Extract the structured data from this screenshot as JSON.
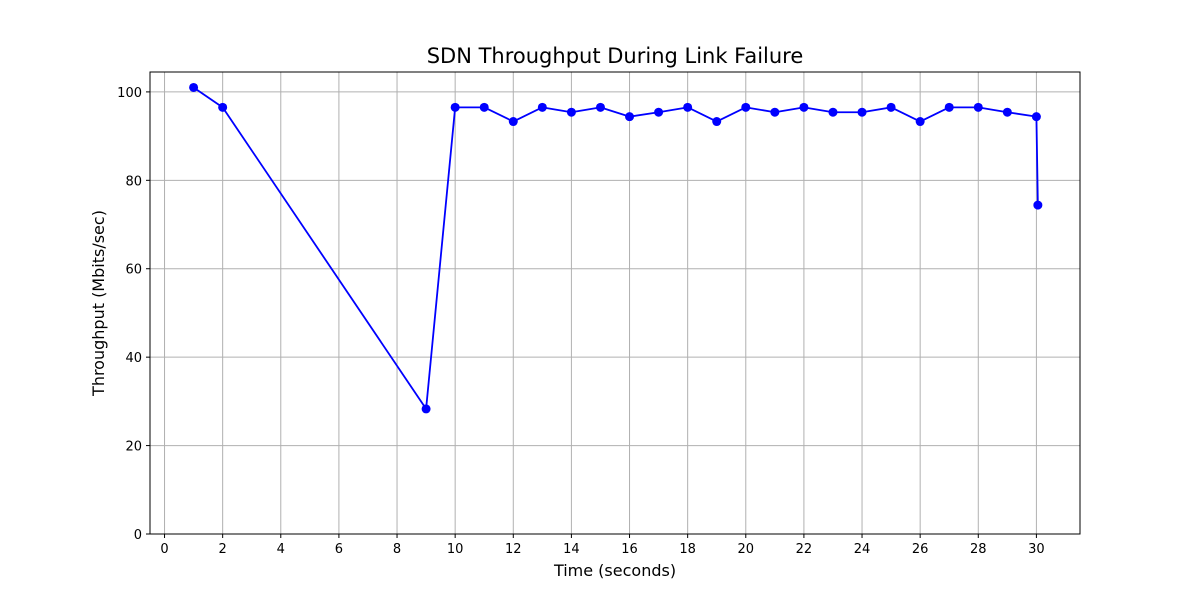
{
  "chart_data": {
    "type": "line",
    "title": "SDN Throughput During Link Failure",
    "xlabel": "Time (seconds)",
    "ylabel": "Throughput (Mbits/sec)",
    "xlim": [
      -0.5,
      31.5
    ],
    "ylim": [
      0,
      104.5
    ],
    "xticks": [
      0,
      2,
      4,
      6,
      8,
      10,
      12,
      14,
      16,
      18,
      20,
      22,
      24,
      26,
      28,
      30
    ],
    "yticks": [
      0,
      20,
      40,
      60,
      80,
      100
    ],
    "grid": true,
    "line_color": "#0000ff",
    "grid_color": "#b0b0b0",
    "series": [
      {
        "x": [
          1,
          2,
          9,
          10,
          11,
          12,
          13,
          14,
          15,
          16,
          17,
          18,
          19,
          20,
          21,
          22,
          23,
          24,
          25,
          26,
          27,
          28,
          29,
          30,
          30.05
        ],
        "values": [
          101,
          96.5,
          28.3,
          96.5,
          96.5,
          93.3,
          96.5,
          95.4,
          96.5,
          94.4,
          95.4,
          96.5,
          93.3,
          96.5,
          95.4,
          96.5,
          95.4,
          95.4,
          96.5,
          93.3,
          96.5,
          96.5,
          95.4,
          94.4,
          74.4
        ]
      }
    ]
  }
}
